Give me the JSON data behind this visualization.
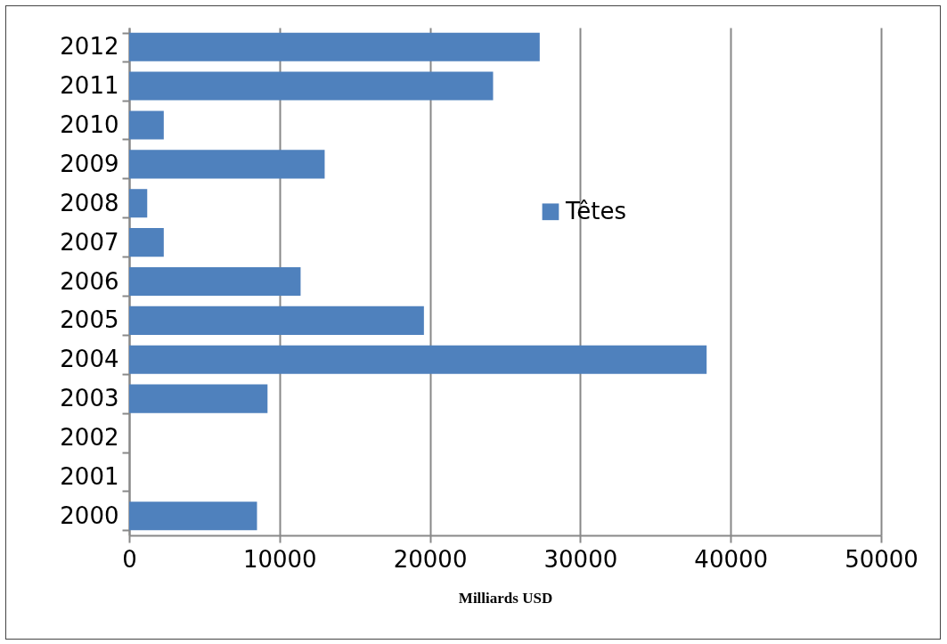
{
  "chart_data": {
    "type": "bar",
    "orientation": "horizontal",
    "xlabel": "Milliards USD",
    "categories": [
      "2012",
      "2011",
      "2010",
      "2009",
      "2008",
      "2007",
      "2006",
      "2005",
      "2004",
      "2003",
      "2002",
      "2001",
      "2000"
    ],
    "series": [
      {
        "name": "Têtes",
        "color": "#4f81bd",
        "values": [
          27300,
          24200,
          2300,
          13000,
          1200,
          2300,
          11400,
          19600,
          38400,
          9200,
          null,
          null,
          8500
        ]
      }
    ],
    "xlim": [
      0,
      50000
    ],
    "xticks": [
      0,
      10000,
      20000,
      30000,
      40000,
      50000
    ],
    "grid": "x",
    "legend": "right"
  }
}
